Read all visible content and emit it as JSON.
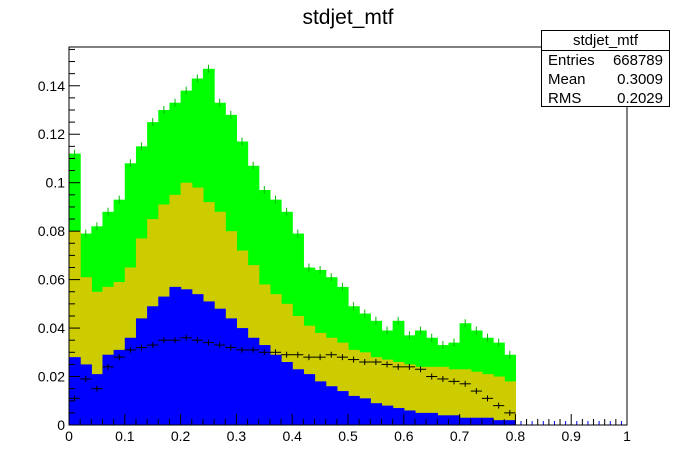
{
  "chart_data": {
    "type": "bar",
    "title": "stdjet_mtf",
    "xlim": [
      0,
      1
    ],
    "ylim": [
      0,
      0.156
    ],
    "x_ticks": [
      "0",
      "0.1",
      "0.2",
      "0.3",
      "0.4",
      "0.5",
      "0.6",
      "0.7",
      "0.8",
      "0.9",
      "1"
    ],
    "y_ticks": [
      "0",
      "0.02",
      "0.04",
      "0.06",
      "0.08",
      "0.1",
      "0.12",
      "0.14"
    ],
    "bin_width": 0.02,
    "bin_starts": [
      0,
      0.02,
      0.04,
      0.06,
      0.08,
      0.1,
      0.12,
      0.14,
      0.16,
      0.18,
      0.2,
      0.22,
      0.24,
      0.26,
      0.28,
      0.3,
      0.32,
      0.34,
      0.36,
      0.38,
      0.4,
      0.42,
      0.44,
      0.46,
      0.48,
      0.5,
      0.52,
      0.54,
      0.56,
      0.58,
      0.6,
      0.62,
      0.64,
      0.66,
      0.68,
      0.7,
      0.72,
      0.74,
      0.76,
      0.78
    ],
    "stack": [
      {
        "color": "#0000ff",
        "values": [
          0.028,
          0.025,
          0.021,
          0.029,
          0.031,
          0.036,
          0.044,
          0.049,
          0.053,
          0.057,
          0.056,
          0.054,
          0.051,
          0.048,
          0.044,
          0.04,
          0.036,
          0.033,
          0.029,
          0.026,
          0.023,
          0.021,
          0.018,
          0.016,
          0.014,
          0.012,
          0.011,
          0.009,
          0.008,
          0.007,
          0.006,
          0.005,
          0.005,
          0.004,
          0.004,
          0.003,
          0.003,
          0.003,
          0.002,
          0.002
        ]
      },
      {
        "color": "#cccc00",
        "values": [
          0.08,
          0.061,
          0.055,
          0.057,
          0.059,
          0.065,
          0.077,
          0.085,
          0.091,
          0.095,
          0.1,
          0.098,
          0.092,
          0.088,
          0.08,
          0.072,
          0.066,
          0.058,
          0.054,
          0.05,
          0.045,
          0.041,
          0.038,
          0.036,
          0.034,
          0.031,
          0.03,
          0.028,
          0.027,
          0.026,
          0.025,
          0.024,
          0.024,
          0.024,
          0.023,
          0.023,
          0.022,
          0.021,
          0.02,
          0.018
        ]
      },
      {
        "color": "#00ff00",
        "values": [
          0.112,
          0.079,
          0.082,
          0.088,
          0.093,
          0.108,
          0.115,
          0.125,
          0.13,
          0.133,
          0.138,
          0.143,
          0.147,
          0.133,
          0.128,
          0.117,
          0.107,
          0.097,
          0.093,
          0.088,
          0.079,
          0.065,
          0.064,
          0.061,
          0.057,
          0.049,
          0.046,
          0.043,
          0.039,
          0.043,
          0.037,
          0.039,
          0.036,
          0.033,
          0.034,
          0.042,
          0.039,
          0.036,
          0.034,
          0.029
        ]
      }
    ],
    "markers": [
      0.011,
      0.019,
      0.015,
      0.024,
      0.028,
      0.031,
      0.032,
      0.033,
      0.035,
      0.035,
      0.036,
      0.035,
      0.034,
      0.033,
      0.032,
      0.031,
      0.031,
      0.03,
      0.03,
      0.029,
      0.029,
      0.028,
      0.028,
      0.029,
      0.028,
      0.027,
      0.026,
      0.026,
      0.025,
      0.024,
      0.024,
      0.023,
      0.02,
      0.019,
      0.018,
      0.017,
      0.014,
      0.011,
      0.008,
      0.005
    ],
    "empty_markers_x": [
      0.81,
      0.83,
      0.85,
      0.87,
      0.89,
      0.91,
      0.93,
      0.95,
      0.97,
      0.99
    ],
    "stats": {
      "title": "stdjet_mtf",
      "rows": [
        {
          "label": "Entries",
          "value": "668789"
        },
        {
          "label": "Mean",
          "value": "0.3009"
        },
        {
          "label": "RMS",
          "value": "0.2029"
        }
      ]
    }
  }
}
